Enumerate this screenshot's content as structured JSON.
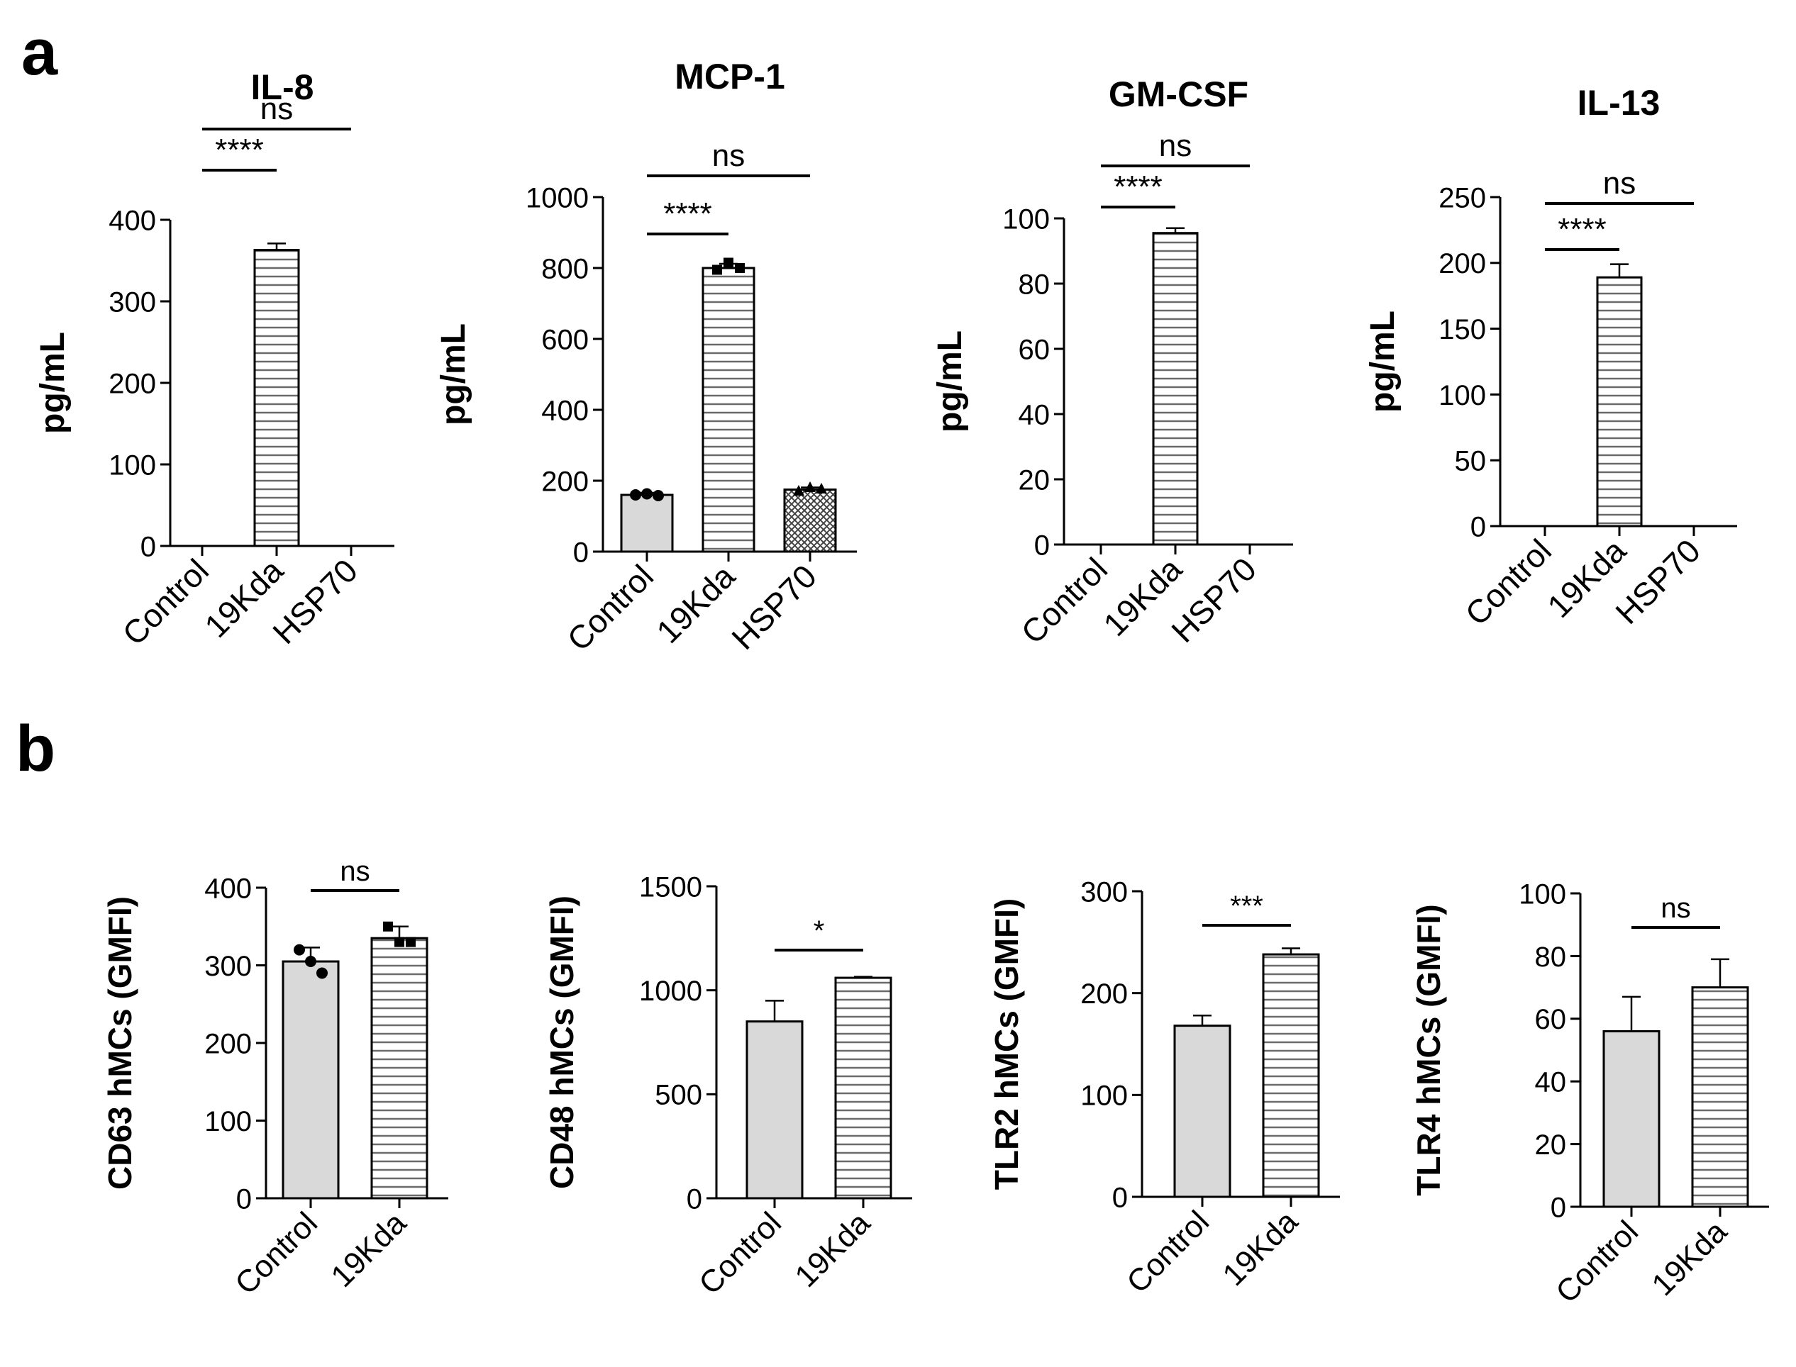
{
  "panels": {
    "a": "a",
    "b": "b"
  },
  "colors": {
    "control_fill": "#d9d9d9",
    "treated_fill": "#ffffff",
    "line": "#000000"
  },
  "chart_data": [
    {
      "type": "bar",
      "panel": "a",
      "title": "IL-8",
      "ylabel": "pg/mL",
      "categories": [
        "Control",
        "19Kda",
        "HSP70"
      ],
      "values": [
        0,
        363,
        0
      ],
      "errors": [
        0,
        8,
        0
      ],
      "patterns": [
        "solid",
        "hlines",
        "solid"
      ],
      "points": [
        [],
        [],
        []
      ],
      "ylim": [
        0,
        400
      ],
      "yticks": [
        "0",
        "100",
        "200",
        "300",
        "400"
      ],
      "brackets": [
        {
          "from": 0,
          "to": 1,
          "label": "****",
          "level": 0
        },
        {
          "from": 0,
          "to": 2,
          "label": "ns",
          "level": 1
        }
      ]
    },
    {
      "type": "bar",
      "panel": "a",
      "title": "MCP-1",
      "ylabel": "pg/mL",
      "categories": [
        "Control",
        "19Kda",
        "HSP70"
      ],
      "values": [
        160,
        800,
        175
      ],
      "errors": [
        6,
        12,
        6
      ],
      "patterns": [
        "solid",
        "hlines",
        "crosshatch"
      ],
      "points": [
        [
          160,
          163,
          158
        ],
        [
          795,
          815,
          800
        ],
        [
          170,
          180,
          176
        ]
      ],
      "ylim": [
        0,
        1000
      ],
      "yticks": [
        "0",
        "200",
        "400",
        "600",
        "800",
        "1000"
      ],
      "brackets": [
        {
          "from": 0,
          "to": 1,
          "label": "****",
          "level": 0
        },
        {
          "from": 0,
          "to": 2,
          "label": "ns",
          "level": 1
        }
      ]
    },
    {
      "type": "bar",
      "panel": "a",
      "title": "GM-CSF",
      "ylabel": "pg/mL",
      "categories": [
        "Control",
        "19Kda",
        "HSP70"
      ],
      "values": [
        0,
        95.5,
        0
      ],
      "errors": [
        0,
        1.5,
        0
      ],
      "patterns": [
        "solid",
        "hlines",
        "solid"
      ],
      "points": [
        [],
        [],
        []
      ],
      "ylim": [
        0,
        100
      ],
      "yticks": [
        "0",
        "20",
        "40",
        "60",
        "80",
        "100"
      ],
      "brackets": [
        {
          "from": 0,
          "to": 1,
          "label": "****",
          "level": 0
        },
        {
          "from": 0,
          "to": 2,
          "label": "ns",
          "level": 1
        }
      ]
    },
    {
      "type": "bar",
      "panel": "a",
      "title": "IL-13",
      "ylabel": "pg/mL",
      "categories": [
        "Control",
        "19Kda",
        "HSP70"
      ],
      "values": [
        0,
        189,
        0
      ],
      "errors": [
        0,
        10,
        0
      ],
      "patterns": [
        "solid",
        "hlines",
        "solid"
      ],
      "points": [
        [],
        [],
        []
      ],
      "ylim": [
        0,
        250
      ],
      "yticks": [
        "0",
        "50",
        "100",
        "150",
        "200",
        "250"
      ],
      "brackets": [
        {
          "from": 0,
          "to": 1,
          "label": "****",
          "level": 0
        },
        {
          "from": 0,
          "to": 2,
          "label": "ns",
          "level": 1
        }
      ]
    },
    {
      "type": "bar",
      "panel": "b",
      "title": "",
      "ylabel": "CD63 hMCs (GMFI)",
      "categories": [
        "Control",
        "19Kda"
      ],
      "values": [
        305,
        335
      ],
      "errors": [
        18,
        15
      ],
      "patterns": [
        "solid",
        "hlines"
      ],
      "points": [
        [
          320,
          305,
          290
        ],
        [
          350,
          330,
          330
        ]
      ],
      "ylim": [
        0,
        400
      ],
      "yticks": [
        "0",
        "100",
        "200",
        "300",
        "400"
      ],
      "brackets": [
        {
          "from": 0,
          "to": 1,
          "label": "ns",
          "level": 0
        }
      ]
    },
    {
      "type": "bar",
      "panel": "b",
      "title": "",
      "ylabel": "CD48 hMCs (GMFI)",
      "categories": [
        "Control",
        "19Kda"
      ],
      "values": [
        850,
        1060
      ],
      "errors": [
        100,
        5
      ],
      "patterns": [
        "solid",
        "hlines"
      ],
      "points": [
        [],
        []
      ],
      "ylim": [
        0,
        1500
      ],
      "yticks": [
        "0",
        "500",
        "1000",
        "1500"
      ],
      "brackets": [
        {
          "from": 0,
          "to": 1,
          "label": "*",
          "level": 0
        }
      ]
    },
    {
      "type": "bar",
      "panel": "b",
      "title": "",
      "ylabel": "TLR2 hMCs (GMFI)",
      "categories": [
        "Control",
        "19Kda"
      ],
      "values": [
        168,
        238
      ],
      "errors": [
        10,
        6
      ],
      "patterns": [
        "solid",
        "hlines"
      ],
      "points": [
        [],
        []
      ],
      "ylim": [
        0,
        300
      ],
      "yticks": [
        "0",
        "100",
        "200",
        "300"
      ],
      "brackets": [
        {
          "from": 0,
          "to": 1,
          "label": "***",
          "level": 0
        }
      ]
    },
    {
      "type": "bar",
      "panel": "b",
      "title": "",
      "ylabel": "TLR4 hMCs (GMFI)",
      "categories": [
        "Control",
        "19Kda"
      ],
      "values": [
        56,
        70
      ],
      "errors": [
        11,
        9
      ],
      "patterns": [
        "solid",
        "hlines"
      ],
      "points": [
        [],
        []
      ],
      "ylim": [
        0,
        100
      ],
      "yticks": [
        "0",
        "20",
        "40",
        "60",
        "80",
        "100"
      ],
      "brackets": [
        {
          "from": 0,
          "to": 1,
          "label": "ns",
          "level": 0
        }
      ]
    }
  ]
}
